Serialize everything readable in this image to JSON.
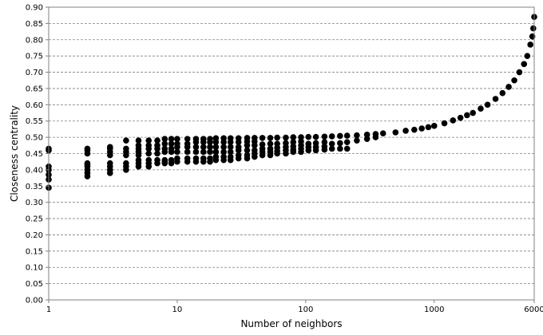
{
  "chart_data": {
    "type": "scatter",
    "xlabel": "Number of neighbors",
    "ylabel": "Closeness centrality",
    "xscale": "log",
    "xlim": [
      1,
      6000
    ],
    "ylim": [
      0.0,
      0.9
    ],
    "x_ticks": [
      1,
      10,
      100,
      1000,
      6000
    ],
    "x_tick_labels": [
      "1",
      "10",
      "100",
      "1000",
      "6000"
    ],
    "y_ticks": [
      0.0,
      0.05,
      0.1,
      0.15,
      0.2,
      0.25,
      0.3,
      0.35,
      0.4,
      0.45,
      0.5,
      0.55,
      0.6,
      0.65,
      0.7,
      0.75,
      0.8,
      0.85,
      0.9
    ],
    "y_tick_labels": [
      "0.00",
      "0.05",
      "0.10",
      "0.15",
      "0.20",
      "0.25",
      "0.30",
      "0.35",
      "0.40",
      "0.45",
      "0.50",
      "0.55",
      "0.60",
      "0.65",
      "0.70",
      "0.75",
      "0.80",
      "0.85",
      "0.90"
    ],
    "grid": "horizontal dashed",
    "legend": "none",
    "marker_color": "#000000",
    "series": [
      {
        "x": [
          1,
          1,
          1,
          1,
          1,
          1,
          1,
          2,
          2,
          2,
          2,
          2,
          2,
          2,
          2,
          2,
          3,
          3,
          3,
          3,
          3,
          3,
          3,
          3,
          4,
          4,
          4,
          4,
          4,
          4,
          4,
          5,
          5,
          5,
          5,
          5,
          5,
          5,
          5,
          6,
          6,
          6,
          6,
          6,
          6,
          6,
          7,
          7,
          7,
          7,
          7,
          7,
          8,
          8,
          8,
          8,
          8,
          8,
          8,
          9,
          9,
          9,
          9,
          9,
          9,
          10,
          10,
          10,
          10,
          10,
          10,
          12,
          12,
          12,
          12,
          12,
          12,
          14,
          14,
          14,
          14,
          14,
          14,
          16,
          16,
          16,
          16,
          16,
          16,
          18,
          18,
          18,
          18,
          18,
          18,
          20,
          20,
          20,
          20,
          20,
          20,
          23,
          23,
          23,
          23,
          23,
          23,
          26,
          26,
          26,
          26,
          26,
          26,
          30,
          30,
          30,
          30,
          30,
          30,
          35,
          35,
          35,
          35,
          35,
          35,
          40,
          40,
          40,
          40,
          40,
          40,
          46,
          46,
          46,
          46,
          46,
          53,
          53,
          53,
          53,
          53,
          60,
          60,
          60,
          60,
          60,
          70,
          70,
          70,
          70,
          70,
          80,
          80,
          80,
          80,
          80,
          92,
          92,
          92,
          92,
          92,
          105,
          105,
          105,
          105,
          120,
          120,
          120,
          120,
          140,
          140,
          140,
          140,
          160,
          160,
          160,
          185,
          185,
          185,
          210,
          210,
          210,
          250,
          250,
          300,
          300,
          350,
          350,
          400,
          500,
          600,
          700,
          800,
          900,
          1000,
          1200,
          1400,
          1600,
          1800,
          2000,
          2300,
          2600,
          3000,
          3400,
          3800,
          4200,
          4600,
          5000,
          5300,
          5600,
          5800,
          5900,
          6000
        ],
        "y": [
          0.345,
          0.37,
          0.385,
          0.4,
          0.41,
          0.46,
          0.465,
          0.38,
          0.39,
          0.4,
          0.41,
          0.415,
          0.42,
          0.45,
          0.46,
          0.465,
          0.39,
          0.4,
          0.41,
          0.42,
          0.445,
          0.455,
          0.465,
          0.47,
          0.4,
          0.41,
          0.42,
          0.445,
          0.455,
          0.465,
          0.49,
          0.41,
          0.42,
          0.43,
          0.445,
          0.455,
          0.465,
          0.475,
          0.49,
          0.41,
          0.42,
          0.43,
          0.45,
          0.465,
          0.475,
          0.49,
          0.42,
          0.43,
          0.45,
          0.465,
          0.475,
          0.49,
          0.42,
          0.425,
          0.43,
          0.455,
          0.465,
          0.48,
          0.495,
          0.42,
          0.43,
          0.455,
          0.465,
          0.48,
          0.495,
          0.425,
          0.435,
          0.455,
          0.47,
          0.48,
          0.495,
          0.425,
          0.435,
          0.455,
          0.47,
          0.48,
          0.495,
          0.425,
          0.435,
          0.455,
          0.47,
          0.485,
          0.495,
          0.425,
          0.435,
          0.455,
          0.47,
          0.485,
          0.495,
          0.425,
          0.435,
          0.455,
          0.47,
          0.485,
          0.495,
          0.43,
          0.44,
          0.455,
          0.47,
          0.485,
          0.497,
          0.43,
          0.44,
          0.455,
          0.47,
          0.485,
          0.497,
          0.43,
          0.44,
          0.455,
          0.47,
          0.485,
          0.497,
          0.435,
          0.445,
          0.46,
          0.47,
          0.485,
          0.497,
          0.435,
          0.445,
          0.46,
          0.475,
          0.487,
          0.498,
          0.44,
          0.45,
          0.46,
          0.475,
          0.487,
          0.498,
          0.445,
          0.455,
          0.465,
          0.478,
          0.498,
          0.445,
          0.455,
          0.465,
          0.48,
          0.498,
          0.45,
          0.458,
          0.468,
          0.48,
          0.499,
          0.45,
          0.46,
          0.47,
          0.482,
          0.499,
          0.455,
          0.462,
          0.472,
          0.485,
          0.5,
          0.455,
          0.465,
          0.475,
          0.487,
          0.5,
          0.46,
          0.47,
          0.48,
          0.501,
          0.46,
          0.47,
          0.482,
          0.501,
          0.462,
          0.472,
          0.485,
          0.502,
          0.465,
          0.48,
          0.503,
          0.465,
          0.482,
          0.504,
          0.465,
          0.485,
          0.505,
          0.49,
          0.506,
          0.495,
          0.508,
          0.5,
          0.51,
          0.512,
          0.515,
          0.52,
          0.523,
          0.527,
          0.531,
          0.535,
          0.543,
          0.552,
          0.56,
          0.568,
          0.575,
          0.588,
          0.6,
          0.618,
          0.636,
          0.655,
          0.675,
          0.7,
          0.725,
          0.75,
          0.785,
          0.81,
          0.835,
          0.87
        ]
      }
    ]
  }
}
